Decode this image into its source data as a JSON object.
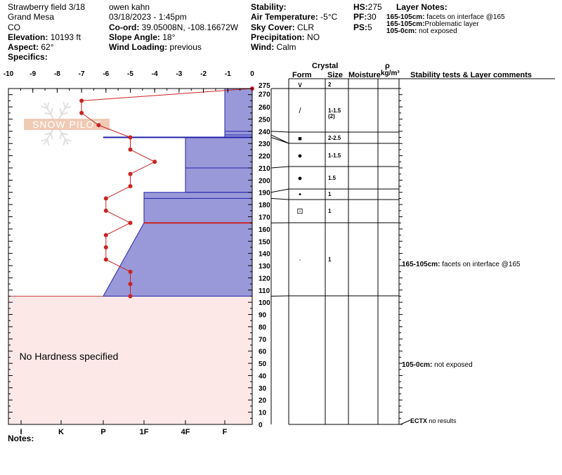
{
  "header": {
    "col1": {
      "line1": "Strawberry field 3/18",
      "line2": "Grand Mesa",
      "line3": "CO",
      "elevation_label": "Elevation:",
      "elevation_value": " 10193 ft",
      "aspect_label": "Aspect:",
      "aspect_value": " 62°",
      "specifics_label": "Specifics:"
    },
    "col2": {
      "observer": "owen kahn",
      "datetime": "03/18/2023 - 1:45pm",
      "coord_label": "Co-ord:",
      "coord_value": " 39.05008N, -108.16672W",
      "slope_label": "Slope Angle:",
      "slope_value": " 18°",
      "wind_loading_label": "Wind Loading:",
      "wind_loading_value": " previous"
    },
    "col3": {
      "stability_label": "Stability:",
      "air_temp_label": "Air Temperature:",
      "air_temp_value": " -5°C",
      "sky_label": "Sky Cover:",
      "sky_value": " CLR",
      "precip_label": "Precipitation:",
      "precip_value": " NO",
      "wind_label": "Wind:",
      "wind_value": "  Calm"
    },
    "col4": {
      "hs_label": "HS:",
      "hs_value": "275",
      "pf_label": "PF:",
      "pf_value": "30",
      "ps_label": "PS:",
      "ps_value": "5"
    },
    "layer_notes": {
      "title": "Layer Notes:",
      "items": [
        {
          "range": "165-105cm:",
          "text": " facets on interface @165"
        },
        {
          "range": "165-105cm:",
          "text": "Problematic layer"
        },
        {
          "range": "105-0cm:",
          "text": " not exposed"
        }
      ]
    }
  },
  "table": {
    "crystal": "Crystal",
    "form": "Form",
    "size": "Size",
    "moisture": "Moisture",
    "rho": "ρ",
    "density_unit": "kg/m³",
    "stability": "Stability tests & Layer comments",
    "rows": [
      {
        "top": 275,
        "bottom": 240,
        "form": "∨",
        "size": "2",
        "size2": ""
      },
      {
        "top": 240,
        "bottom": 237,
        "form": "",
        "size": "",
        "size2": ""
      },
      {
        "top": 237,
        "bottom": 235,
        "form": "",
        "size": "",
        "size2": ""
      },
      {
        "top": 235,
        "bottom": 210,
        "form": "■",
        "size": "2-2.5",
        "size2": ""
      },
      {
        "top": 210,
        "bottom": 190,
        "form": "●",
        "size": "1-1.5",
        "size2": ""
      },
      {
        "top": 190,
        "bottom": 185,
        "form": "●",
        "size": "1.5",
        "size2": ""
      },
      {
        "top": 185,
        "bottom": 165,
        "form": "•",
        "size": "1",
        "size2": ""
      },
      {
        "top": 165,
        "bottom": 105,
        "form": "⊡",
        "size": "1",
        "size2": ""
      },
      {
        "top": 105,
        "bottom": 0,
        "form": "·",
        "size": "1",
        "size2": ""
      }
    ],
    "comments": [
      {
        "at": 130,
        "range": "165-105cm:",
        "text": " facets on interface @165"
      },
      {
        "at": 50,
        "range": "105-0cm:",
        "text": " not exposed"
      },
      {
        "at": 3,
        "range": "ECTX",
        "text": " no results"
      }
    ]
  },
  "notes_label": "Notes:",
  "chart_data": {
    "type": "line",
    "temp_axis": {
      "min": -10,
      "max": 0,
      "ticks": [
        -10,
        -9,
        -8,
        -7,
        -6,
        -5,
        -4,
        -3,
        -2,
        -1,
        0
      ]
    },
    "height_axis": {
      "min": 0,
      "max": 275,
      "ticks": [
        0,
        10,
        20,
        30,
        40,
        50,
        60,
        70,
        80,
        90,
        100,
        110,
        120,
        130,
        140,
        150,
        160,
        170,
        180,
        190,
        200,
        210,
        220,
        230,
        240,
        250,
        260,
        270,
        275
      ]
    },
    "hardness_axis": {
      "labels": [
        "I",
        "K",
        "P",
        "1F",
        "4F",
        "F"
      ]
    },
    "temperature_profile": [
      {
        "h": 275,
        "t": 0
      },
      {
        "h": 265,
        "t": -7
      },
      {
        "h": 255,
        "t": -7
      },
      {
        "h": 245,
        "t": -6.3
      },
      {
        "h": 235,
        "t": -5
      },
      {
        "h": 225,
        "t": -5
      },
      {
        "h": 215,
        "t": -4
      },
      {
        "h": 205,
        "t": -5
      },
      {
        "h": 195,
        "t": -5
      },
      {
        "h": 185,
        "t": -6
      },
      {
        "h": 175,
        "t": -6
      },
      {
        "h": 165,
        "t": -5
      },
      {
        "h": 155,
        "t": -6
      },
      {
        "h": 145,
        "t": -6
      },
      {
        "h": 135,
        "t": -6
      },
      {
        "h": 125,
        "t": -5
      },
      {
        "h": 115,
        "t": -5
      },
      {
        "h": 105,
        "t": -5
      }
    ],
    "hardness_profile": [
      {
        "top": 275,
        "bottom": 235,
        "hardness_top": "F",
        "hardness_bottom": "F"
      },
      {
        "top": 235,
        "bottom": 190,
        "hardness_top": "4F",
        "hardness_bottom": "4F"
      },
      {
        "top": 190,
        "bottom": 165,
        "hardness_top": "1F",
        "hardness_bottom": "1F"
      },
      {
        "top": 165,
        "bottom": 105,
        "hardness_top": "1F",
        "hardness_bottom": "P"
      }
    ],
    "no_hardness_range": [
      0,
      105
    ],
    "no_hardness_text": "No Hardness specified",
    "watermark": "SNOW PILOT"
  }
}
